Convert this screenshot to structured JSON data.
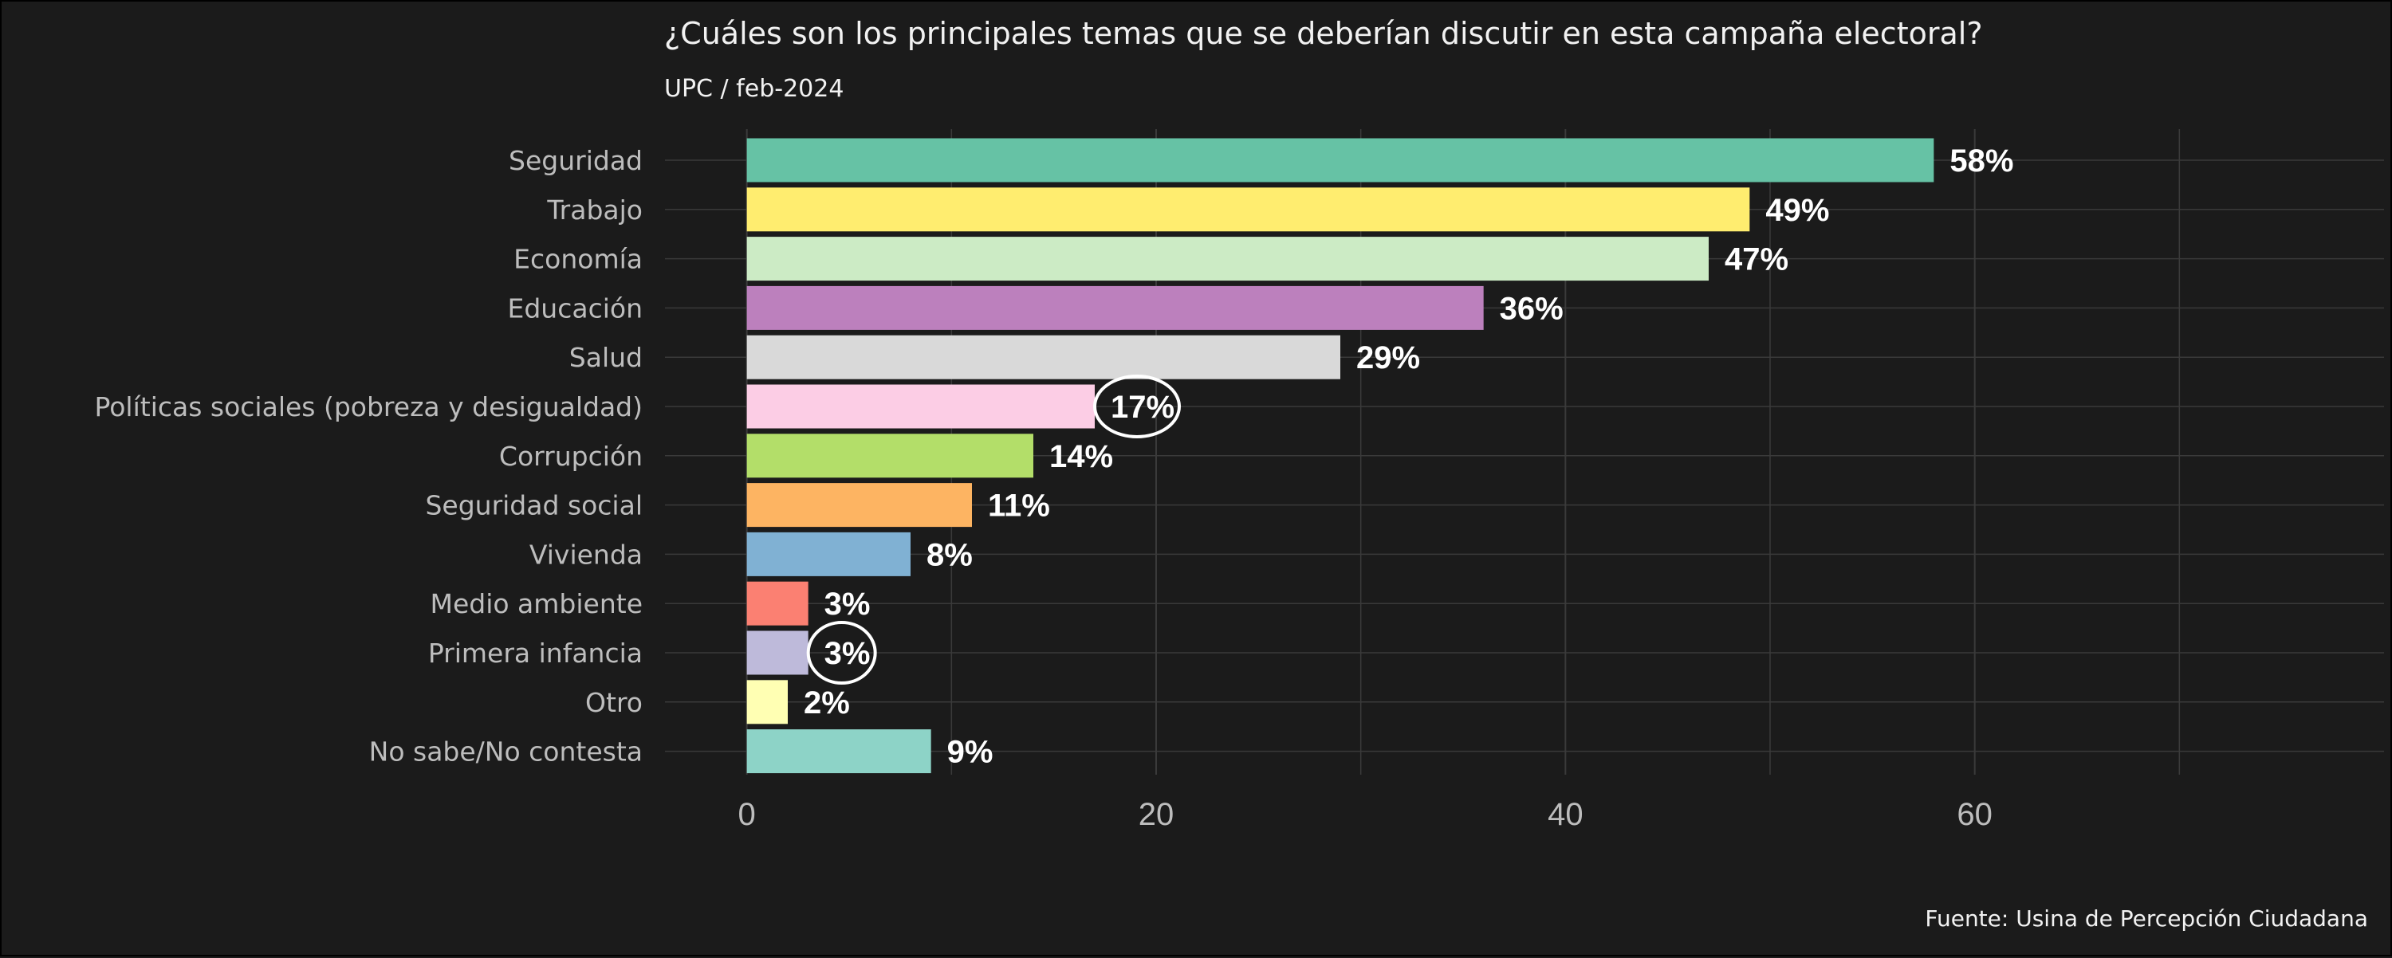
{
  "chart_data": {
    "type": "bar",
    "orientation": "horizontal",
    "title": "¿Cuáles son los principales temas que se deberían discutir en esta campaña electoral?",
    "subtitle": "UPC / feb-2024",
    "caption": "Fuente: Usina de Percepción Ciudadana",
    "categories": [
      "Seguridad",
      "Trabajo",
      "Economía",
      "Educación",
      "Salud",
      "Políticas sociales (pobreza y desigualdad)",
      "Corrupción",
      "Seguridad social",
      "Vivienda",
      "Medio ambiente",
      "Primera infancia",
      "Otro",
      "No sabe/No contesta"
    ],
    "values": [
      58,
      49,
      47,
      36,
      29,
      17,
      14,
      11,
      8,
      3,
      3,
      2,
      9
    ],
    "value_labels": [
      "58%",
      "49%",
      "47%",
      "36%",
      "29%",
      "17%",
      "14%",
      "11%",
      "8%",
      "3%",
      "3%",
      "2%",
      "9%"
    ],
    "colors": [
      "#66c2a5",
      "#ffed6f",
      "#ccebc5",
      "#bc80bd",
      "#d9d9d9",
      "#fccde5",
      "#b3de69",
      "#fdb462",
      "#80b1d3",
      "#fb8072",
      "#bebada",
      "#ffffb3",
      "#8dd3c7"
    ],
    "highlighted": [
      "Políticas sociales (pobreza y desigualdad)",
      "Primera infancia"
    ],
    "xlim": [
      -4,
      80
    ],
    "xticks": [
      0,
      20,
      40,
      60
    ],
    "grid": true,
    "background": "#1b1b1b",
    "gridline_color": "#3a3a3a"
  }
}
